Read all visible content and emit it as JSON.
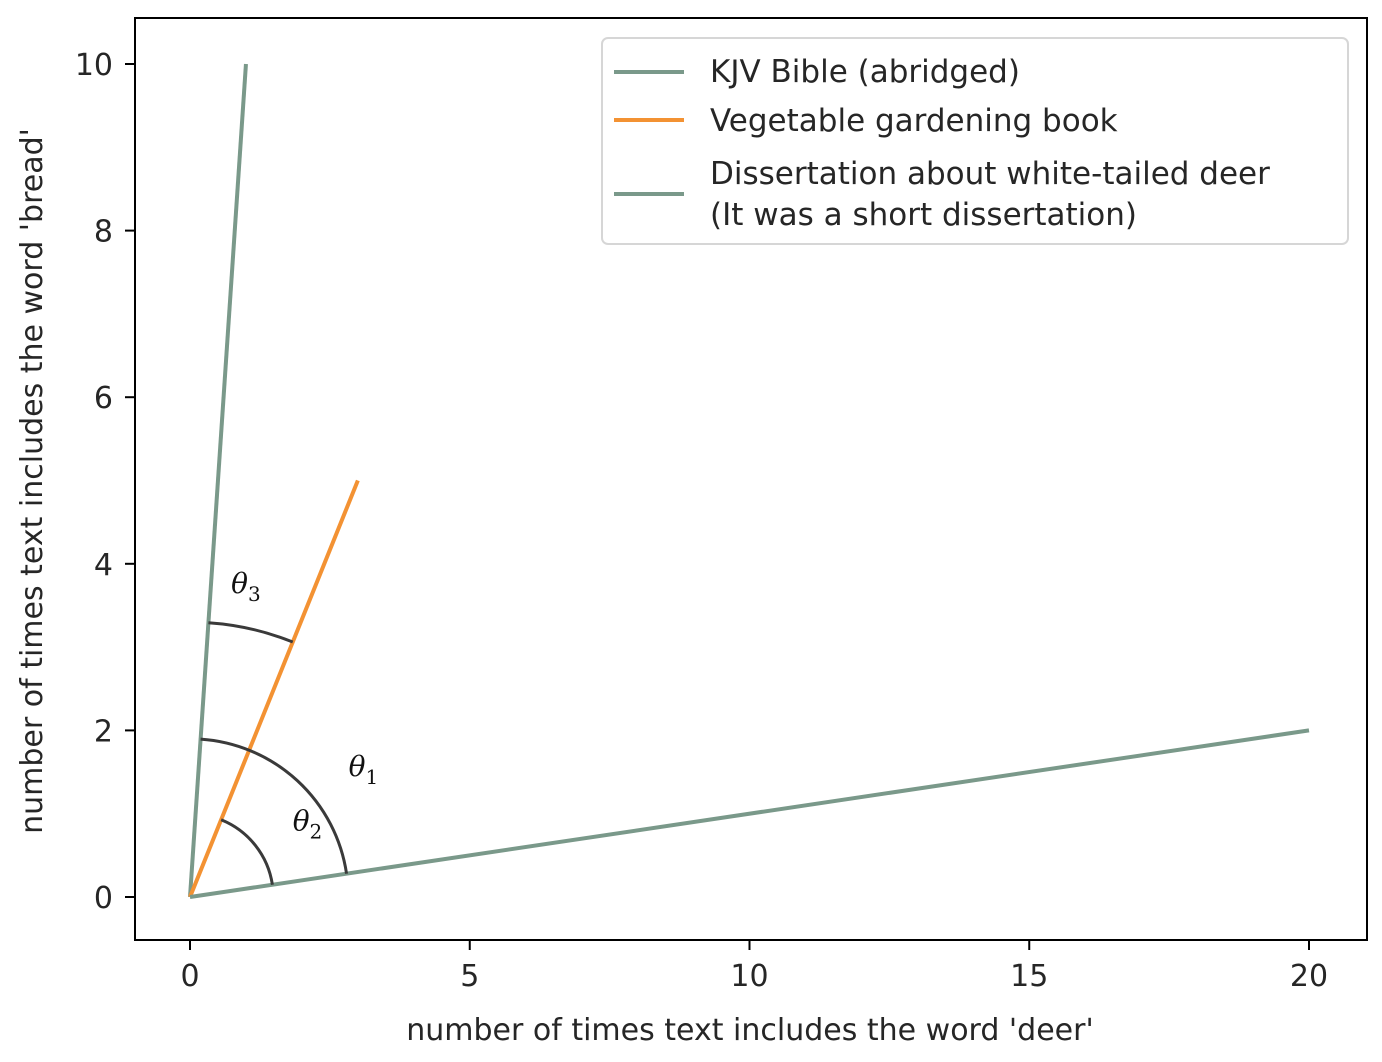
{
  "chart_data": {
    "type": "line",
    "xlabel": "number of times text includes the word 'deer'",
    "ylabel": "number of times text includes the word 'bread'",
    "xlim": [
      -1,
      21
    ],
    "ylim": [
      -0.5,
      10.5
    ],
    "x_ticks": [
      0,
      5,
      10,
      15,
      20
    ],
    "y_ticks": [
      0,
      2,
      4,
      6,
      8,
      10
    ],
    "grid": false,
    "legend_position": "top-right",
    "series": [
      {
        "name": "KJV Bible (abridged)",
        "color": "#7a998a",
        "x": [
          0,
          1
        ],
        "y": [
          0,
          10
        ]
      },
      {
        "name": "Vegetable gardening book",
        "color": "#f39233",
        "x": [
          0,
          3
        ],
        "y": [
          0,
          5
        ]
      },
      {
        "name": "Dissertation about white-tailed deer\n(It was a short dissertation)",
        "color": "#7a998a",
        "x": [
          0,
          20
        ],
        "y": [
          0,
          2
        ]
      }
    ],
    "legend_lines": [
      [
        "KJV Bible (abridged)"
      ],
      [
        "Vegetable gardening book"
      ],
      [
        "Dissertation about white-tailed deer",
        "(It was a short dissertation)"
      ]
    ],
    "annotations": [
      {
        "symbol": "θ",
        "subscript": "1",
        "between": [
          "KJV Bible (abridged)",
          "Dissertation about white-tailed deer"
        ],
        "radius": 1.9,
        "label_at": [
          3.1,
          1.45
        ]
      },
      {
        "symbol": "θ",
        "subscript": "2",
        "between": [
          "Vegetable gardening book",
          "Dissertation about white-tailed deer"
        ],
        "radius": 1.0,
        "label_at": [
          2.1,
          0.8
        ]
      },
      {
        "symbol": "θ",
        "subscript": "3",
        "between": [
          "KJV Bible (abridged)",
          "Vegetable gardening book"
        ],
        "radius": 3.3,
        "label_at": [
          1.0,
          3.65
        ]
      }
    ],
    "arc_color": "#3a3a3a"
  }
}
